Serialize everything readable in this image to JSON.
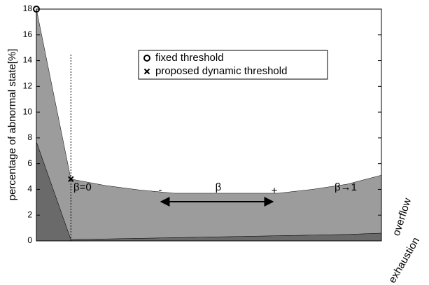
{
  "chart_data": {
    "type": "stacked_area",
    "ylabel": "percentage of abnormal state[%]",
    "x": [
      0,
      1,
      2,
      3,
      4,
      5,
      6,
      7,
      8,
      9,
      10
    ],
    "xlim": [
      0,
      10
    ],
    "ylim": [
      0,
      18
    ],
    "yticks": [
      0,
      2,
      4,
      6,
      8,
      10,
      12,
      14,
      16,
      18
    ],
    "series": [
      {
        "name": "exhaustion",
        "color": "#6a6a6a",
        "values": [
          7.7,
          0.1,
          0.15,
          0.2,
          0.25,
          0.3,
          0.35,
          0.4,
          0.45,
          0.5,
          0.6
        ]
      },
      {
        "name": "overflow",
        "color": "#9c9c9c",
        "values": [
          10.3,
          4.7,
          4.15,
          3.75,
          3.45,
          3.4,
          3.35,
          3.3,
          3.55,
          3.9,
          4.5
        ]
      }
    ],
    "markers": [
      {
        "name": "fixed threshold",
        "symbol": "o",
        "x": 0,
        "y": 18
      },
      {
        "name": "proposed dynamic threshold",
        "symbol": "x",
        "x": 1,
        "y": 4.8
      }
    ],
    "vline": {
      "x": 1,
      "ymax": 14.5
    },
    "annotations": [
      "β=0",
      "-",
      "β",
      "+",
      "β→1"
    ]
  }
}
